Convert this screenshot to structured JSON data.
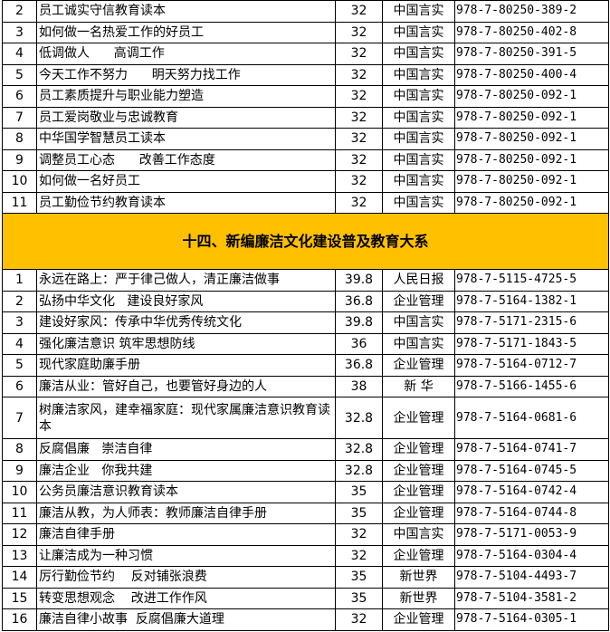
{
  "section_a": {
    "rows": [
      {
        "no": "2",
        "title": "员工诚实守信教育读本",
        "price": "32",
        "publisher": "中国言实",
        "isbn": "978-7-80250-389-2"
      },
      {
        "no": "3",
        "title": "如何做一名热爱工作的好员工",
        "price": "32",
        "publisher": "中国言实",
        "isbn": "978-7-80250-402-8"
      },
      {
        "no": "4",
        "title": "低调做人      高调工作",
        "price": "32",
        "publisher": "中国言实",
        "isbn": "978-7-80250-391-5"
      },
      {
        "no": "5",
        "title": "今天工作不努力      明天努力找工作",
        "price": "32",
        "publisher": "中国言实",
        "isbn": "978-7-80250-400-4"
      },
      {
        "no": "6",
        "title": "员工素质提升与职业能力塑造",
        "price": "32",
        "publisher": "中国言实",
        "isbn": "978-7-80250-092-1"
      },
      {
        "no": "7",
        "title": "员工爱岗敬业与忠诚教育",
        "price": "32",
        "publisher": "中国言实",
        "isbn": "978-7-80250-092-1"
      },
      {
        "no": "8",
        "title": "中华国学智慧员工读本",
        "price": "32",
        "publisher": "中国言实",
        "isbn": "978-7-80250-092-1"
      },
      {
        "no": "9",
        "title": "调整员工心态      改善工作态度",
        "price": "32",
        "publisher": "中国言实",
        "isbn": "978-7-80250-092-1"
      },
      {
        "no": "10",
        "title": "如何做一名好员工",
        "price": "32",
        "publisher": "中国言实",
        "isbn": "978-7-80250-092-1"
      },
      {
        "no": "11",
        "title": "员工勤俭节约教育读本",
        "price": "32",
        "publisher": "中国言实",
        "isbn": "978-7-80250-092-1"
      }
    ]
  },
  "section_b": {
    "heading": "十四、新编廉洁文化建设普及教育大系",
    "heading_color": "#FFC000",
    "rows": [
      {
        "no": "1",
        "title": "永远在路上：严于律己做人，清正廉洁做事",
        "price": "39.8",
        "publisher": "人民日报",
        "isbn": "978-7-5115-4725-5"
      },
      {
        "no": "2",
        "title": "弘扬中华文化   建设良好家风",
        "price": "36.8",
        "publisher": "企业管理",
        "isbn": "978-7-5164-1382-1"
      },
      {
        "no": "3",
        "title": "建设好家风：传承中华优秀传统文化",
        "price": "39.8",
        "publisher": "中国言实",
        "isbn": "978-7-5171-2315-6"
      },
      {
        "no": "4",
        "title": "强化廉洁意识 筑牢思想防线",
        "price": "36",
        "publisher": "中国言实",
        "isbn": "978-7-5171-1843-5"
      },
      {
        "no": "5",
        "title": "现代家庭助廉手册",
        "price": "36.8",
        "publisher": "企业管理",
        "isbn": "978-7-5164-0712-7"
      },
      {
        "no": "6",
        "title": "廉洁从业：管好自己，也要管好身边的人",
        "price": "38",
        "publisher": "新   华",
        "isbn": "978-7-5166-1455-6"
      },
      {
        "no": "7",
        "title": "树廉洁家风，建幸福家庭：现代家属廉洁意识教育读本",
        "price": "32.8",
        "publisher": "企业管理",
        "isbn": "978-7-5164-0681-6"
      },
      {
        "no": "8",
        "title": "反腐倡廉   崇洁自律",
        "price": "32.8",
        "publisher": "企业管理",
        "isbn": "978-7-5164-0741-7"
      },
      {
        "no": "9",
        "title": "廉洁企业   你我共建",
        "price": "32.8",
        "publisher": "企业管理",
        "isbn": "978-7-5164-0745-5"
      },
      {
        "no": "10",
        "title": "公务员廉洁意识教育读本",
        "price": "35",
        "publisher": "企业管理",
        "isbn": "978-7-5164-0742-4"
      },
      {
        "no": "11",
        "title": "廉洁从教，为人师表：教师廉洁自律手册",
        "price": "35",
        "publisher": "企业管理",
        "isbn": "978-7-5164-0744-8"
      },
      {
        "no": "12",
        "title": "廉洁自律手册",
        "price": "32",
        "publisher": "中国言实",
        "isbn": "978-7-5171-0053-9"
      },
      {
        "no": "13",
        "title": "让廉洁成为一种习惯",
        "price": "32",
        "publisher": "企业管理",
        "isbn": "978-7-5164-0304-4"
      },
      {
        "no": "14",
        "title": "厉行勤俭节约    反对铺张浪费",
        "price": "35",
        "publisher": "新世界",
        "isbn": "978-7-5104-4493-7"
      },
      {
        "no": "15",
        "title": "转变思想观念    改进工作作风",
        "price": "35",
        "publisher": "新世界",
        "isbn": "978-7-5104-3581-2"
      },
      {
        "no": "16",
        "title": "廉洁自律小故事  反腐倡廉大道理",
        "price": "32",
        "publisher": "企业管理",
        "isbn": "978-7-5164-0305-1"
      }
    ]
  }
}
